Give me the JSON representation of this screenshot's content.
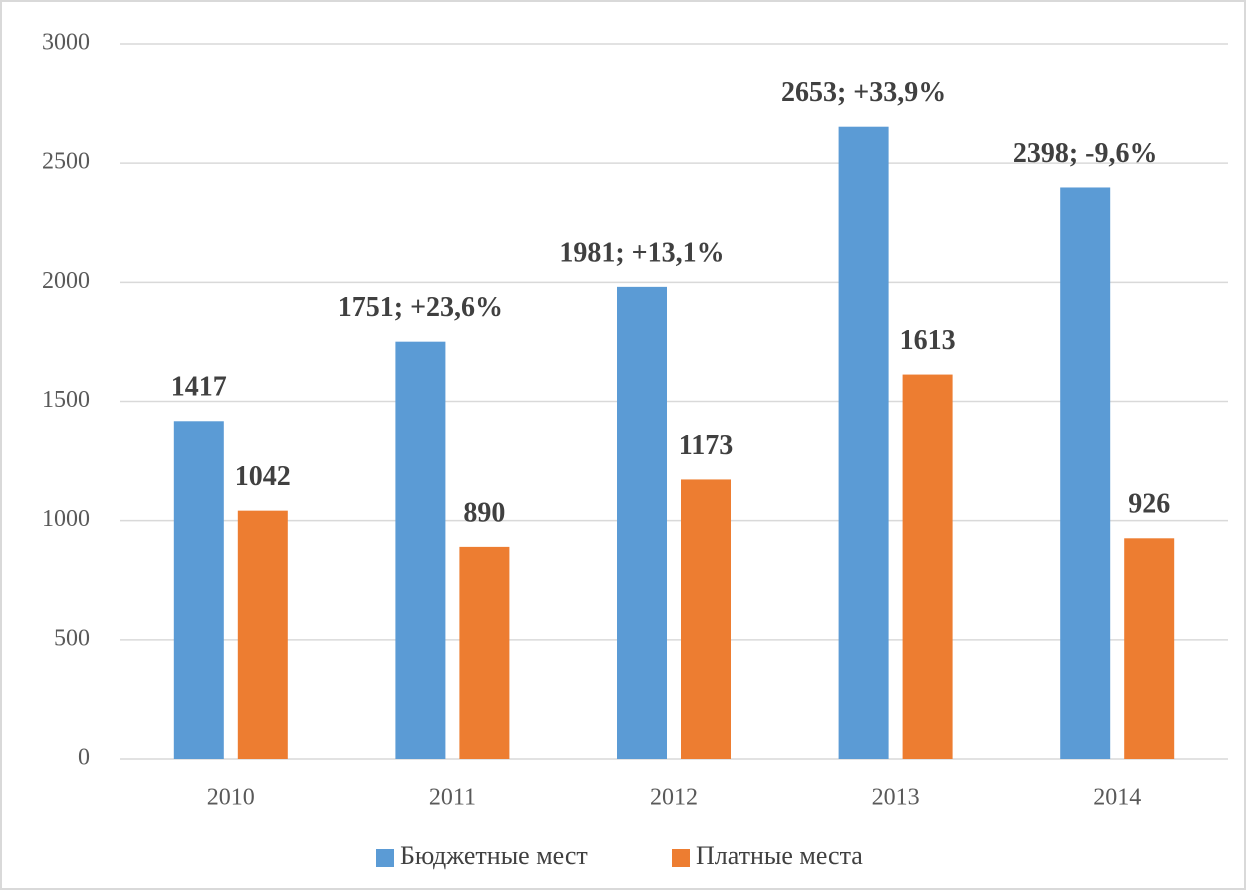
{
  "chart_data": {
    "type": "bar",
    "categories": [
      "2010",
      "2011",
      "2012",
      "2013",
      "2014"
    ],
    "series": [
      {
        "name": "Бюджетные мест",
        "color": "#5b9bd5",
        "values": [
          1417,
          1751,
          1981,
          2653,
          2398
        ],
        "value_labels": [
          "1417",
          "1751; +23,6%",
          "1981; +13,1%",
          "2653; +33,9%",
          "2398; -9,6%"
        ]
      },
      {
        "name": "Платные места",
        "color": "#ed7d31",
        "values": [
          1042,
          890,
          1173,
          1613,
          926
        ]
      }
    ],
    "ylim": [
      0,
      3000
    ],
    "yticks": [
      0,
      500,
      1000,
      1500,
      2000,
      2500,
      3000
    ],
    "grid": true,
    "legend": "bottom"
  }
}
